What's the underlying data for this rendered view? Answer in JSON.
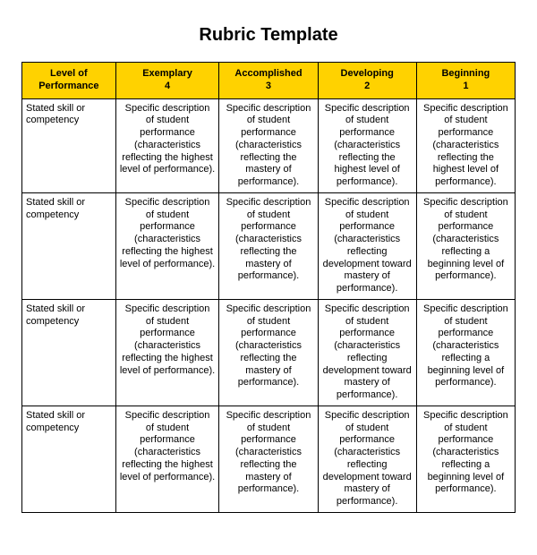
{
  "title": "Rubric Template",
  "table": {
    "header_bg": "#ffd200",
    "border_color": "#000000",
    "columns": [
      {
        "label": "Level of Performance",
        "sub": ""
      },
      {
        "label": "Exemplary",
        "sub": "4"
      },
      {
        "label": "Accomplished",
        "sub": "3"
      },
      {
        "label": "Developing",
        "sub": "2"
      },
      {
        "label": "Beginning",
        "sub": "1"
      }
    ],
    "rows": [
      {
        "label": "Stated skill or competency",
        "cells": [
          "Specific description of student performance (characteristics reflecting the highest level of performance).",
          "Specific description of student performance (characteristics reflecting the mastery of performance).",
          "Specific description of student performance (characteristics reflecting the highest level of performance).",
          "Specific description of student performance (characteristics reflecting the highest level of performance)."
        ]
      },
      {
        "label": "Stated skill or competency",
        "cells": [
          "Specific description of student performance (characteristics reflecting the highest level of performance).",
          "Specific description of student performance (characteristics reflecting the mastery of performance).",
          "Specific description of student performance (characteristics reflecting development toward mastery of performance).",
          "Specific description of student performance (characteristics reflecting a beginning level of performance)."
        ]
      },
      {
        "label": "Stated skill or competency",
        "cells": [
          "Specific description of student performance (characteristics reflecting the highest level of performance).",
          "Specific description of student performance (characteristics reflecting the mastery of performance).",
          "Specific description of student performance (characteristics reflecting development toward mastery of performance).",
          "Specific description of student performance (characteristics reflecting a beginning level of performance)."
        ]
      },
      {
        "label": "Stated skill or competency",
        "cells": [
          "Specific description of student performance (characteristics reflecting the highest level of performance).",
          "Specific description of student performance (characteristics reflecting the mastery of performance).",
          "Specific description of student performance (characteristics reflecting development toward mastery of performance).",
          "Specific description of student performance (characteristics reflecting a beginning level of performance)."
        ]
      }
    ]
  }
}
